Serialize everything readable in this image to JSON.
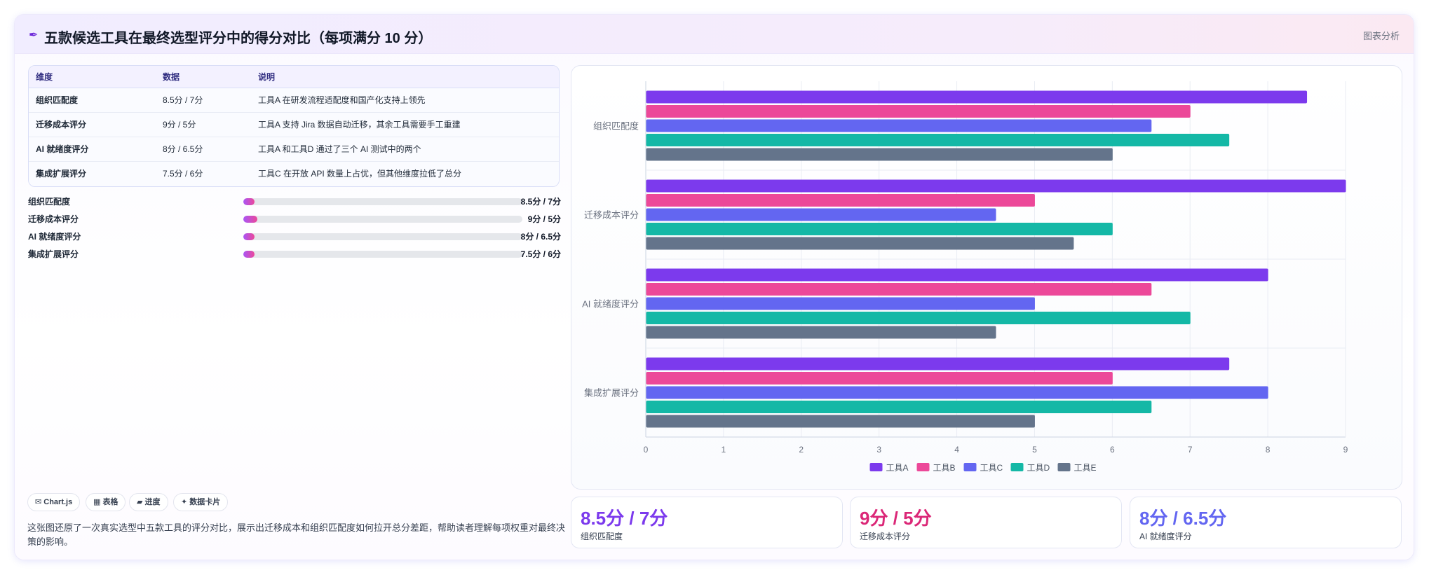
{
  "header": {
    "title": "五款候选工具在最终选型评分中的得分对比（每项满分 10 分）",
    "tag": "图表分析",
    "icon": "pen-icon"
  },
  "table": {
    "headers": [
      "维度",
      "数据",
      "说明"
    ],
    "rows": [
      [
        "组织匹配度",
        "8.5分 / 7分",
        "工具A 在研发流程适配度和国产化支持上领先"
      ],
      [
        "迁移成本评分",
        "9分 / 5分",
        "工具A 支持 Jira 数据自动迁移，其余工具需要手工重建"
      ],
      [
        "AI 就绪度评分",
        "8分 / 6.5分",
        "工具A 和工具D 通过了三个 AI 测试中的两个"
      ],
      [
        "集成扩展评分",
        "7.5分 / 6分",
        "工具C 在开放 API 数量上占优，但其他维度拉低了总分"
      ]
    ]
  },
  "progress": [
    {
      "label": "组织匹配度",
      "value": "8.5分 / 7分",
      "fraction": 0.04
    },
    {
      "label": "迁移成本评分",
      "value": "9分 / 5分",
      "fraction": 0.05
    },
    {
      "label": "AI 就绪度评分",
      "value": "8分 / 6.5分",
      "fraction": 0.04
    },
    {
      "label": "集成扩展评分",
      "value": "7.5分 / 6分",
      "fraction": 0.04
    }
  ],
  "chips": [
    {
      "label": "✉ Chart.js",
      "icon": "chart-icon"
    },
    {
      "label": "▦ 表格",
      "icon": "table-icon"
    },
    {
      "label": "▰ 进度",
      "icon": "progress-icon"
    },
    {
      "label": "✦ 数据卡片",
      "icon": "card-icon"
    }
  ],
  "description": "这张图还原了一次真实选型中五款工具的评分对比，展示出迁移成本和组织匹配度如何拉开总分差距，帮助读者理解每项权重对最终决策的影响。",
  "stats": [
    {
      "value": "8.5分 / 7分",
      "label": "组织匹配度",
      "color": "#7c3aed"
    },
    {
      "value": "9分 / 5分",
      "label": "迁移成本评分",
      "color": "#db2777"
    },
    {
      "value": "8分 / 6.5分",
      "label": "AI 就绪度评分",
      "color": "#6366f1"
    }
  ],
  "chart_data": {
    "type": "bar",
    "orientation": "horizontal",
    "categories": [
      "组织匹配度",
      "迁移成本评分",
      "AI 就绪度评分",
      "集成扩展评分"
    ],
    "series": [
      {
        "name": "工具A",
        "color": "#7c3aed",
        "values": [
          8.5,
          9,
          8,
          7.5
        ]
      },
      {
        "name": "工具B",
        "color": "#ec4899",
        "values": [
          7,
          5,
          6.5,
          6
        ]
      },
      {
        "name": "工具C",
        "color": "#6366f1",
        "values": [
          6.5,
          4.5,
          5,
          8
        ]
      },
      {
        "name": "工具D",
        "color": "#14b8a6",
        "values": [
          7.5,
          6,
          7,
          6.5
        ]
      },
      {
        "name": "工具E",
        "color": "#64748b",
        "values": [
          6,
          5.5,
          4.5,
          5
        ]
      }
    ],
    "xlim": [
      0,
      9
    ],
    "xticks": [
      "0",
      "1",
      "2",
      "3",
      "4",
      "5",
      "6",
      "7",
      "8",
      "9"
    ],
    "grid": true,
    "legend": "bottom"
  }
}
